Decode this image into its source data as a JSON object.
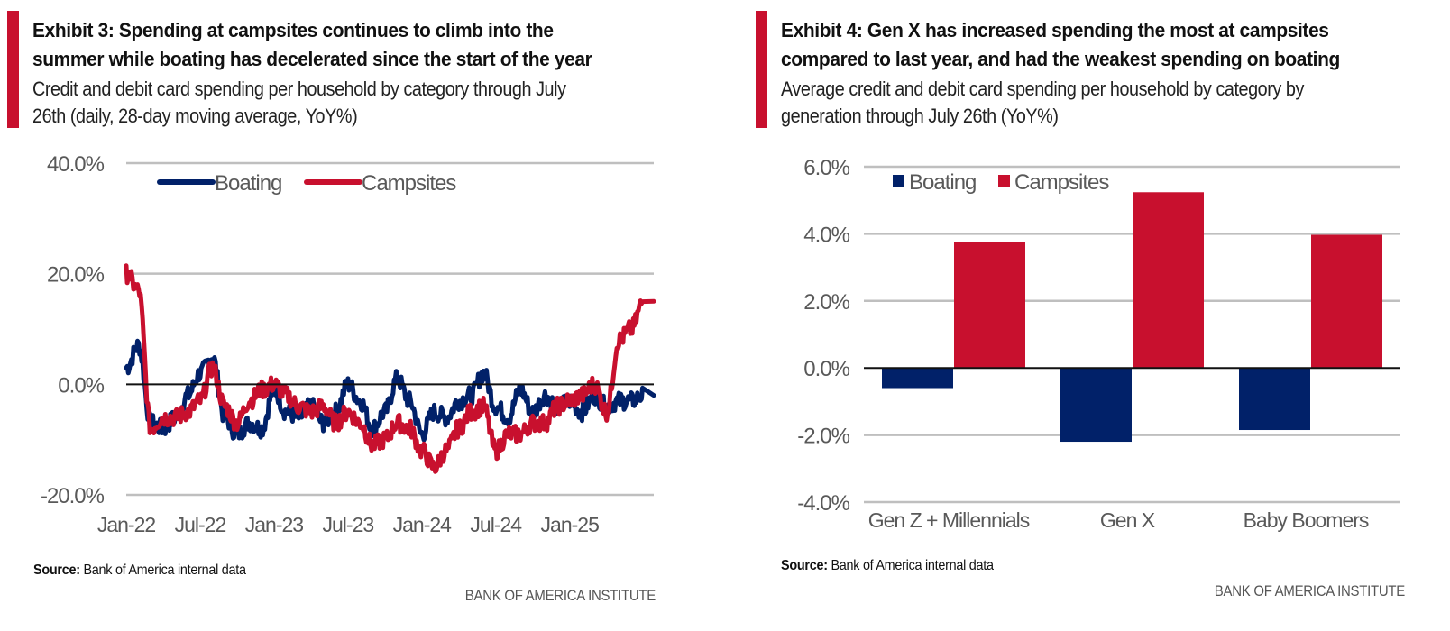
{
  "colors": {
    "accent": "#c8102e",
    "boating": "#012169",
    "campsites": "#c8102e",
    "grid": "#bfbfbf",
    "zero_line": "#111111",
    "axis_text": "#595959"
  },
  "brand": "BANK OF AMERICA INSTITUTE",
  "exhibit3": {
    "title_line1": "Exhibit 3: Spending at campsites continues to climb into the",
    "title_line2": "summer while boating has decelerated since the start of the year",
    "subtitle_line1": "Credit and debit card spending per household by category through July",
    "subtitle_line2": "26th (daily, 28-day moving average, YoY%)",
    "source_label": "Source:",
    "source_text": " Bank of America internal data"
  },
  "exhibit4": {
    "title_line1": "Exhibit 4: Gen X has increased spending the most at campsites",
    "title_line2": "compared to last year, and had the weakest spending on boating",
    "subtitle_line1": "Average credit and debit card spending per household by category by",
    "subtitle_line2": "generation through July 26th (YoY%)",
    "source_label": "Source:",
    "source_text": " Bank of America internal data"
  },
  "chart_data": [
    {
      "type": "line",
      "title": "Exhibit 3: Spending at campsites continues to climb into the summer while boating has decelerated since the start of the year",
      "xlabel": "",
      "ylabel": "YoY%",
      "ylim": [
        -20,
        40
      ],
      "yticks": [
        -20,
        0,
        20,
        40
      ],
      "ytick_labels": [
        "-20.0%",
        "0.0%",
        "20.0%",
        "40.0%"
      ],
      "xtick_labels": [
        "Jan-22",
        "Jul-22",
        "Jan-23",
        "Jul-23",
        "Jan-24",
        "Jul-24",
        "Jan-25"
      ],
      "x_range": [
        "2022-01",
        "2025-07-26"
      ],
      "grid": true,
      "legend": "top-left",
      "x": [
        "Jan-22",
        "Feb-22",
        "Mar-22",
        "Apr-22",
        "May-22",
        "Jun-22",
        "Jul-22",
        "Aug-22",
        "Sep-22",
        "Oct-22",
        "Nov-22",
        "Dec-22",
        "Jan-23",
        "Feb-23",
        "Mar-23",
        "Apr-23",
        "May-23",
        "Jun-23",
        "Jul-23",
        "Aug-23",
        "Sep-23",
        "Oct-23",
        "Nov-23",
        "Dec-23",
        "Jan-24",
        "Feb-24",
        "Mar-24",
        "Apr-24",
        "May-24",
        "Jun-24",
        "Jul-24",
        "Aug-24",
        "Sep-24",
        "Oct-24",
        "Nov-24",
        "Dec-24",
        "Jan-25",
        "Feb-25",
        "Mar-25",
        "Apr-25",
        "May-25",
        "Jun-25",
        "Jul-25"
      ],
      "series": [
        {
          "name": "Boating",
          "values": [
            3,
            7,
            -7,
            -8,
            -6,
            -2,
            2,
            5,
            -6,
            -9,
            -7,
            -8,
            -1,
            -5,
            -6,
            -4,
            -7,
            -5,
            0,
            -3,
            -8,
            -5,
            1,
            -3,
            -9,
            -5,
            -6,
            -3,
            -2,
            2,
            -4,
            -6,
            -1,
            -5,
            -2,
            -4,
            -3,
            -5,
            -2,
            -4,
            -3,
            -3,
            -2
          ]
        },
        {
          "name": "Campsites",
          "values": [
            20,
            17,
            -8,
            -6,
            -6,
            -5,
            -3,
            3,
            -4,
            -7,
            -3,
            -1,
            0,
            -2,
            -4,
            -5,
            -4,
            -7,
            -5,
            -7,
            -11,
            -10,
            -7,
            -8,
            -12,
            -15,
            -12,
            -8,
            -5,
            -4,
            -12,
            -9,
            -9,
            -7,
            -7,
            -4,
            -3,
            -2,
            0,
            -5,
            8,
            10,
            15
          ]
        }
      ]
    },
    {
      "type": "bar",
      "title": "Exhibit 4: Gen X has increased spending the most at campsites compared to last year, and had the weakest spending on boating",
      "xlabel": "",
      "ylabel": "YoY%",
      "ylim": [
        -4,
        6
      ],
      "yticks": [
        -4,
        -2,
        0,
        2,
        4,
        6
      ],
      "ytick_labels": [
        "-4.0%",
        "-2.0%",
        "0.0%",
        "2.0%",
        "4.0%",
        "6.0%"
      ],
      "grid": true,
      "legend": "top-left",
      "categories": [
        "Gen Z + Millennials",
        "Gen X",
        "Baby Boomers"
      ],
      "series": [
        {
          "name": "Boating",
          "values": [
            -0.6,
            -2.2,
            -1.85
          ]
        },
        {
          "name": "Campsites",
          "values": [
            3.76,
            5.24,
            3.97
          ]
        }
      ]
    }
  ]
}
